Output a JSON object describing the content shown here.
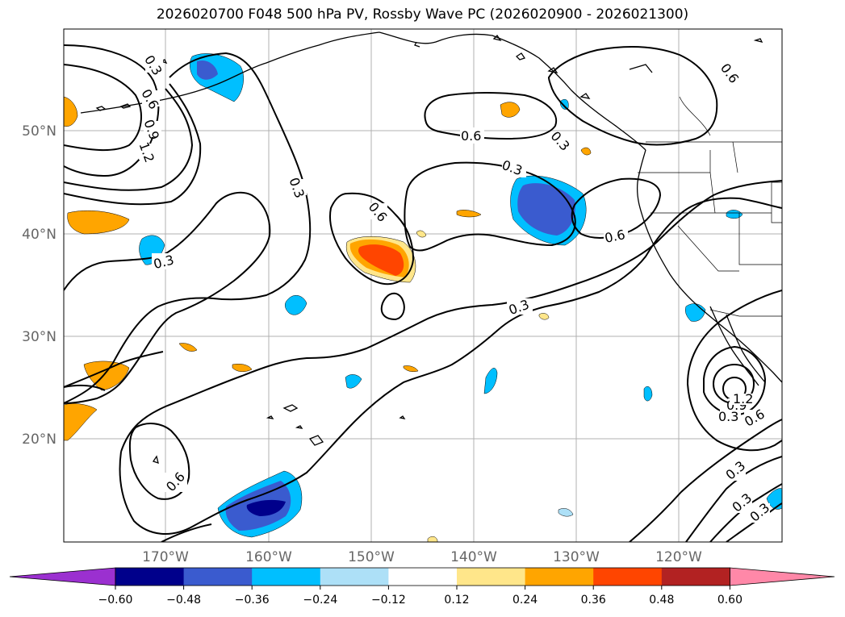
{
  "title": "2026020700 F048 500 hPa PV, Rossby Wave PC (2026020900 - 2026021300)",
  "latitude_labels": [
    "50°N",
    "40°N",
    "30°N",
    "20°N"
  ],
  "longitude_labels": [
    "170°W",
    "160°W",
    "150°W",
    "140°W",
    "130°W",
    "120°W"
  ],
  "contour_labels": {
    "l1": "0.3",
    "l2": "0.6",
    "l3": "0.9",
    "l4": "1.2",
    "l5": "0.3",
    "l6": "0.6",
    "l7": "0.6",
    "l8": "0.3",
    "l9": "0.3",
    "l10": "0.6",
    "l11": "0.6",
    "l12": "0.3",
    "l13": "0.3",
    "l14": "0.6",
    "l15": "0.3",
    "l16": "0.6",
    "l17": "0.9",
    "l18": "1.2",
    "l19": "0.3",
    "l20": "0.3",
    "l21": "0.3"
  },
  "colorbar": {
    "ticks": [
      "−0.60",
      "−0.48",
      "−0.36",
      "−0.24",
      "−0.12",
      "0.12",
      "0.24",
      "0.36",
      "0.48",
      "0.60"
    ],
    "colors": [
      "#9b30d0",
      "#00008b",
      "#3a5bcf",
      "#00bfff",
      "#ade0f7",
      "#ffffff",
      "#ffe68a",
      "#ffa500",
      "#ff4500",
      "#b22222",
      "#ff88a8"
    ]
  }
}
